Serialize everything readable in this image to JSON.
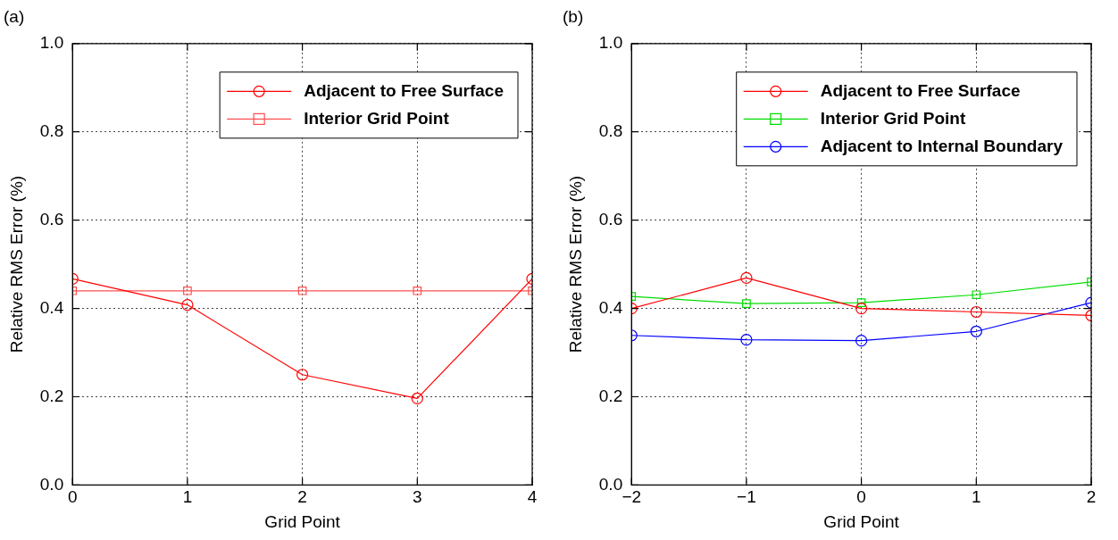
{
  "chart_data": [
    {
      "type": "line",
      "title": "(a)",
      "xlabel": "Grid Point",
      "ylabel": "Relative RMS Error (%)",
      "x": [
        0,
        1,
        2,
        3,
        4
      ],
      "series": [
        {
          "name": "Adjacent to Free Surface",
          "color": "#ff0000",
          "marker": "circle",
          "values": [
            0.467,
            0.408,
            0.25,
            0.196,
            0.467
          ]
        },
        {
          "name": "Interior Grid Point",
          "color": "#ff5050",
          "marker": "square",
          "values": [
            0.44,
            0.44,
            0.44,
            0.44,
            0.44
          ]
        }
      ],
      "xlim": [
        0,
        4
      ],
      "xticks": [
        0,
        1,
        2,
        3,
        4
      ],
      "ylim": [
        0,
        1
      ],
      "yticks": [
        {
          "value": 0,
          "label": "0.0"
        },
        {
          "value": 0.2,
          "label": "0.2"
        },
        {
          "value": 0.4,
          "label": "0.4"
        },
        {
          "value": 0.6,
          "label": "0.6"
        },
        {
          "value": 0.8,
          "label": "0.8"
        },
        {
          "value": 1,
          "label": "1.0"
        }
      ],
      "grid": true,
      "legend": "top right",
      "line_style": "solid"
    },
    {
      "type": "line",
      "title": "(b)",
      "xlabel": "Grid Point",
      "ylabel": "Relative RMS Error (%)",
      "x": [
        -2,
        -1,
        0,
        1,
        2
      ],
      "series": [
        {
          "name": "Adjacent to Free Surface",
          "color": "#ff0000",
          "marker": "circle",
          "values": [
            0.4,
            0.469,
            0.4,
            0.392,
            0.384
          ]
        },
        {
          "name": "Interior Grid Point",
          "color": "#00dd00",
          "marker": "square",
          "values": [
            0.427,
            0.411,
            0.413,
            0.431,
            0.46
          ]
        },
        {
          "name": "Adjacent to Internal Boundary",
          "color": "#0000ff",
          "marker": "circle",
          "values": [
            0.339,
            0.329,
            0.327,
            0.348,
            0.413
          ]
        }
      ],
      "xlim": [
        -2,
        2
      ],
      "xticks": [
        {
          "value": -2,
          "label": "−2"
        },
        {
          "value": -1,
          "label": "−1"
        },
        0,
        1,
        2
      ],
      "ylim": [
        0,
        1
      ],
      "yticks": [
        {
          "value": 0,
          "label": "0.0"
        },
        {
          "value": 0.2,
          "label": "0.2"
        },
        {
          "value": 0.4,
          "label": "0.4"
        },
        {
          "value": 0.6,
          "label": "0.6"
        },
        {
          "value": 0.8,
          "label": "0.8"
        },
        {
          "value": 1,
          "label": "1.0"
        }
      ],
      "grid": true,
      "legend": "top right",
      "line_style": "solid"
    }
  ]
}
